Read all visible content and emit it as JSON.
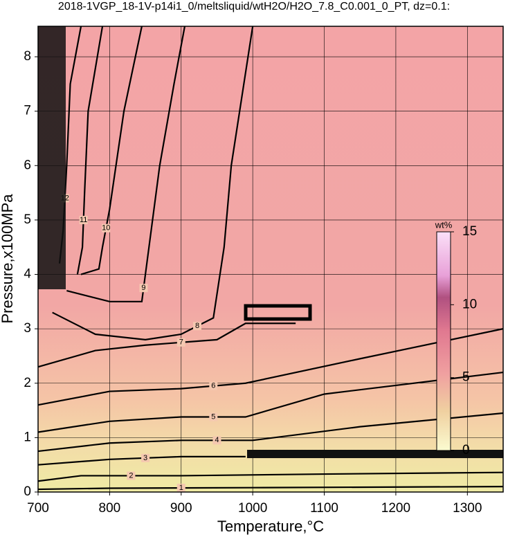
{
  "chart_data": {
    "type": "contour",
    "title": "2018-1VGP_18-1V-p14i1_0/meltsliquid/wtH2O/H2O_7.8_C0.001_0_PT, dz=0.1:",
    "xlabel": "Temperature,°C",
    "ylabel": "Pressure,x100MPa",
    "xlim": [
      700,
      1350
    ],
    "ylim": [
      0,
      8.56
    ],
    "xticks": [
      700,
      800,
      900,
      1000,
      1100,
      1200,
      1300
    ],
    "yticks": [
      0,
      1,
      2,
      3,
      4,
      5,
      6,
      7,
      8
    ],
    "grid": true,
    "colorbar": {
      "label": "wt%",
      "lim": [
        0,
        15
      ],
      "ticks": [
        0,
        5,
        10,
        15
      ]
    },
    "contours": [
      {
        "level": 1,
        "x": [
          700,
          800,
          1000,
          1350
        ],
        "y": [
          0.05,
          0.07,
          0.08,
          0.1
        ]
      },
      {
        "level": 2,
        "x": [
          700,
          760,
          900,
          1100,
          1350
        ],
        "y": [
          0.2,
          0.3,
          0.3,
          0.33,
          0.36
        ]
      },
      {
        "level": 3,
        "x": [
          700,
          800,
          900,
          990
        ],
        "y": [
          0.5,
          0.6,
          0.65,
          0.65
        ]
      },
      {
        "level": 4,
        "x": [
          700,
          800,
          900,
          1000,
          1150,
          1350
        ],
        "y": [
          0.75,
          0.9,
          0.95,
          0.95,
          1.2,
          1.45
        ]
      },
      {
        "level": 5,
        "x": [
          700,
          800,
          900,
          990,
          1100,
          1350
        ],
        "y": [
          1.1,
          1.3,
          1.38,
          1.38,
          1.8,
          2.2
        ]
      },
      {
        "level": 6,
        "x": [
          700,
          800,
          900,
          990,
          1150,
          1350
        ],
        "y": [
          1.6,
          1.85,
          1.9,
          2.0,
          2.45,
          3.0
        ]
      },
      {
        "level": 7,
        "x": [
          700,
          780,
          850,
          950,
          990,
          1060
        ],
        "y": [
          2.3,
          2.6,
          2.7,
          2.8,
          3.1,
          3.1
        ]
      },
      {
        "level": 8,
        "x": [
          720,
          780,
          850,
          900,
          945,
          960,
          970,
          1000
        ],
        "y": [
          3.3,
          2.9,
          2.8,
          2.9,
          3.2,
          4.5,
          6.0,
          8.56
        ]
      },
      {
        "level": 9,
        "x": [
          740,
          800,
          845,
          850,
          870,
          890,
          905
        ],
        "y": [
          3.7,
          3.5,
          3.5,
          4.0,
          6.0,
          7.5,
          8.56
        ]
      },
      {
        "level": 10,
        "x": [
          760,
          785,
          790,
          800,
          820,
          845
        ],
        "y": [
          4.0,
          4.1,
          4.5,
          5.2,
          7.0,
          8.56
        ]
      },
      {
        "level": 11,
        "x": [
          755,
          762,
          765,
          770,
          790
        ],
        "y": [
          4.0,
          4.5,
          5.5,
          7.0,
          8.56
        ]
      },
      {
        "level": 12,
        "x": [
          730,
          735,
          740,
          745,
          760
        ],
        "y": [
          4.2,
          4.8,
          6.0,
          7.5,
          8.56
        ]
      }
    ]
  }
}
